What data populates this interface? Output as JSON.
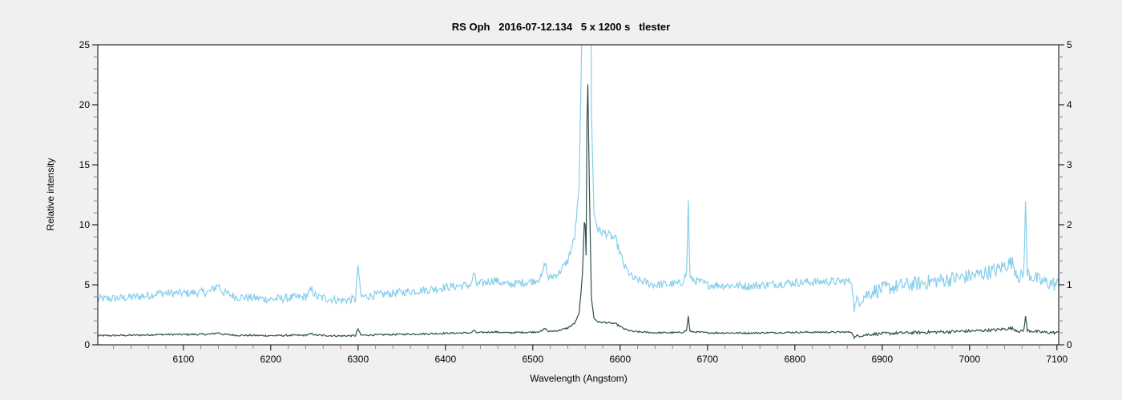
{
  "chart_data": {
    "type": "line",
    "title": "RS Oph   2016-07-12.134   5 x 1200 s   tlester",
    "xlabel": "Wavelength (Angstom)",
    "ylabel": "Relative intensity",
    "xlim": [
      6002,
      7102
    ],
    "ylim_left": [
      0,
      25
    ],
    "ylim_right": [
      0,
      5
    ],
    "x_ticks": [
      6100,
      6200,
      6300,
      6400,
      6500,
      6600,
      6700,
      6800,
      6900,
      7000,
      7100
    ],
    "x_tick_labels": [
      "6100",
      "6200",
      "6300",
      "6400",
      "6500",
      "6600",
      "6700",
      "6800",
      "6900",
      "7000",
      "7100"
    ],
    "y_left_ticks": [
      0,
      5,
      10,
      15,
      20,
      25
    ],
    "y_left_tick_labels": [
      "0",
      "5",
      "10",
      "15",
      "20",
      "25"
    ],
    "y_right_ticks": [
      0,
      1,
      2,
      3,
      4,
      5
    ],
    "y_right_tick_labels": [
      "0",
      "1",
      "2",
      "3",
      "4",
      "5"
    ],
    "grid": false,
    "legend": "none",
    "spectrum_points": [
      [
        6002,
        0.76
      ],
      [
        6030,
        0.78
      ],
      [
        6060,
        0.82
      ],
      [
        6070,
        0.86
      ],
      [
        6100,
        0.86
      ],
      [
        6130,
        0.88
      ],
      [
        6140,
        1.0
      ],
      [
        6145,
        0.88
      ],
      [
        6160,
        0.8
      ],
      [
        6200,
        0.76
      ],
      [
        6240,
        0.8
      ],
      [
        6247,
        0.92
      ],
      [
        6252,
        0.8
      ],
      [
        6280,
        0.74
      ],
      [
        6297,
        0.76
      ],
      [
        6300,
        1.34
      ],
      [
        6303,
        0.8
      ],
      [
        6340,
        0.86
      ],
      [
        6380,
        0.92
      ],
      [
        6400,
        0.96
      ],
      [
        6430,
        1.0
      ],
      [
        6432,
        1.2
      ],
      [
        6436,
        1.0
      ],
      [
        6456,
        1.08
      ],
      [
        6470,
        1.0
      ],
      [
        6500,
        1.06
      ],
      [
        6510,
        1.12
      ],
      [
        6514,
        1.38
      ],
      [
        6518,
        1.1
      ],
      [
        6530,
        1.2
      ],
      [
        6540,
        1.4
      ],
      [
        6548,
        1.8
      ],
      [
        6553,
        2.6
      ],
      [
        6557,
        6
      ],
      [
        6559.5,
        11.3
      ],
      [
        6561,
        7.5
      ],
      [
        6562.5,
        24.3
      ],
      [
        6564.5,
        14
      ],
      [
        6567,
        4
      ],
      [
        6570,
        2.2
      ],
      [
        6575,
        1.9
      ],
      [
        6585,
        1.85
      ],
      [
        6595,
        1.75
      ],
      [
        6605,
        1.3
      ],
      [
        6615,
        1.1
      ],
      [
        6640,
        1.0
      ],
      [
        6670,
        1.02
      ],
      [
        6676,
        1.2
      ],
      [
        6678,
        2.38
      ],
      [
        6680,
        1.1
      ],
      [
        6700,
        1.0
      ],
      [
        6750,
        0.98
      ],
      [
        6800,
        1.04
      ],
      [
        6865,
        1.06
      ],
      [
        6868,
        0.6
      ],
      [
        6872,
        0.75
      ],
      [
        6890,
        0.9
      ],
      [
        6920,
        0.98
      ],
      [
        6960,
        1.06
      ],
      [
        7000,
        1.14
      ],
      [
        7030,
        1.24
      ],
      [
        7048,
        1.38
      ],
      [
        7058,
        1.1
      ],
      [
        7062,
        1.2
      ],
      [
        7064,
        2.38
      ],
      [
        7066,
        1.2
      ],
      [
        7080,
        1.06
      ],
      [
        7102,
        1.0
      ]
    ],
    "noise_amplitude": 0.07,
    "series": [
      {
        "name": "spectrum",
        "axis": "left",
        "color": "#2f4f4f",
        "values_from": "spectrum_points"
      },
      {
        "name": "spectrum x5",
        "axis": "right",
        "color": "#87ceeb",
        "values_from": "spectrum_points"
      }
    ]
  }
}
